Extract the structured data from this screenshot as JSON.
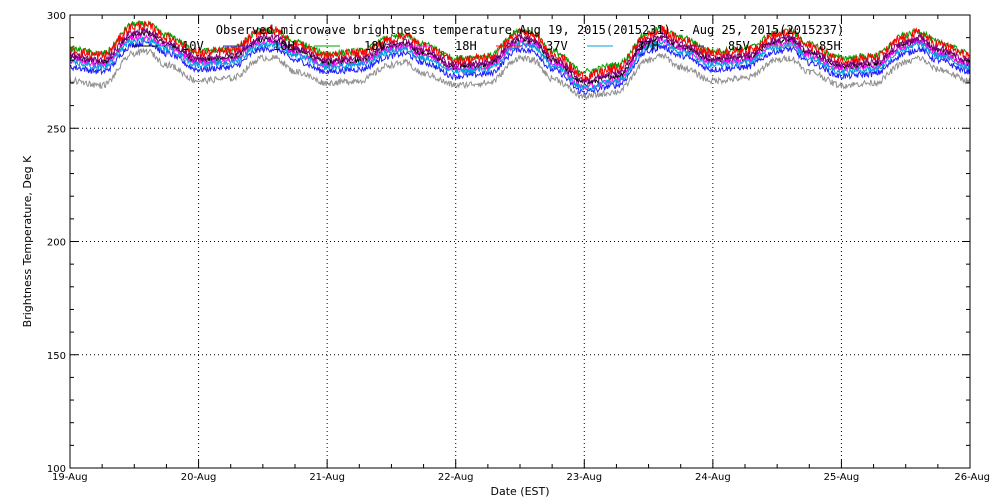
{
  "chart_data": {
    "type": "line",
    "title": "Observed microwave brightness temperature Aug 19, 2015(2015231) - Aug 25, 2015(2015237)",
    "xlabel": "Date (EST)",
    "ylabel": "Brightness Temperature, Deg K",
    "ylim": [
      100,
      300
    ],
    "xlim": [
      0,
      7
    ],
    "x_ticks": [
      {
        "x": 0,
        "label": "19-Aug"
      },
      {
        "x": 1,
        "label": "20-Aug"
      },
      {
        "x": 2,
        "label": "21-Aug"
      },
      {
        "x": 3,
        "label": "22-Aug"
      },
      {
        "x": 4,
        "label": "23-Aug"
      },
      {
        "x": 5,
        "label": "24-Aug"
      },
      {
        "x": 6,
        "label": "25-Aug"
      },
      {
        "x": 7,
        "label": "26-Aug"
      }
    ],
    "y_ticks": [
      100,
      150,
      200,
      250,
      300
    ],
    "grid": true,
    "legend_position": "top",
    "x": [
      0,
      0.25,
      0.5,
      0.6,
      0.75,
      1.0,
      1.25,
      1.5,
      1.6,
      1.75,
      2.0,
      2.25,
      2.5,
      2.6,
      2.75,
      3.0,
      3.25,
      3.5,
      3.6,
      3.75,
      4.0,
      4.25,
      4.5,
      4.6,
      4.75,
      5.0,
      5.25,
      5.5,
      5.6,
      5.75,
      6.0,
      6.25,
      6.5,
      6.6,
      6.75,
      7.0
    ],
    "series": [
      {
        "name": "10V",
        "color": "#000000",
        "values": [
          281,
          279,
          291,
          292,
          287,
          280,
          281,
          289,
          289,
          284,
          279,
          280,
          286,
          287,
          283,
          277,
          278,
          289,
          288,
          280,
          270,
          273,
          288,
          290,
          286,
          280,
          281,
          288,
          289,
          283,
          277,
          278,
          287,
          289,
          284,
          279
        ]
      },
      {
        "name": "10H",
        "color": "#2020ff",
        "values": [
          277,
          275,
          287,
          288,
          283,
          276,
          277,
          285,
          285,
          280,
          275,
          276,
          282,
          283,
          279,
          273,
          274,
          285,
          284,
          276,
          266,
          269,
          284,
          286,
          282,
          276,
          277,
          284,
          285,
          279,
          273,
          274,
          283,
          285,
          280,
          275
        ]
      },
      {
        "name": "18V",
        "color": "#00a000",
        "values": [
          285,
          283,
          296,
          296,
          291,
          284,
          285,
          293,
          293,
          288,
          283,
          284,
          290,
          291,
          287,
          281,
          282,
          293,
          292,
          284,
          275,
          278,
          292,
          294,
          290,
          284,
          285,
          292,
          293,
          287,
          281,
          282,
          291,
          293,
          288,
          283
        ]
      },
      {
        "name": "18H",
        "color": "#ff00ff",
        "values": [
          280,
          278,
          290,
          290,
          286,
          279,
          280,
          288,
          288,
          283,
          278,
          279,
          285,
          286,
          282,
          276,
          277,
          288,
          287,
          279,
          268,
          271,
          287,
          289,
          285,
          279,
          280,
          287,
          288,
          282,
          276,
          277,
          286,
          288,
          283,
          278
        ]
      },
      {
        "name": "37V",
        "color": "#ff0000",
        "values": [
          284,
          282,
          295,
          295,
          290,
          283,
          284,
          293,
          293,
          287,
          282,
          283,
          289,
          291,
          286,
          280,
          281,
          292,
          291,
          283,
          273,
          276,
          291,
          293,
          289,
          283,
          284,
          291,
          292,
          286,
          280,
          281,
          290,
          292,
          287,
          282
        ]
      },
      {
        "name": "37H",
        "color": "#00a0e0",
        "values": [
          279,
          277,
          289,
          289,
          285,
          278,
          279,
          287,
          287,
          282,
          277,
          278,
          284,
          285,
          281,
          275,
          276,
          287,
          286,
          278,
          268,
          271,
          286,
          288,
          284,
          278,
          279,
          286,
          287,
          281,
          275,
          276,
          285,
          287,
          282,
          277
        ]
      },
      {
        "name": "85V",
        "color": "#800080",
        "values": [
          282,
          280,
          292,
          293,
          288,
          281,
          282,
          290,
          290,
          285,
          280,
          281,
          287,
          288,
          284,
          278,
          279,
          290,
          289,
          281,
          271,
          274,
          289,
          291,
          287,
          281,
          282,
          289,
          290,
          284,
          278,
          279,
          288,
          290,
          285,
          280
        ]
      },
      {
        "name": "85H",
        "color": "#909090",
        "values": [
          271,
          269,
          283,
          284,
          278,
          271,
          272,
          281,
          281,
          275,
          270,
          271,
          278,
          279,
          274,
          269,
          270,
          281,
          280,
          272,
          264,
          266,
          280,
          282,
          277,
          271,
          272,
          280,
          281,
          275,
          269,
          270,
          279,
          281,
          276,
          271
        ]
      }
    ]
  }
}
